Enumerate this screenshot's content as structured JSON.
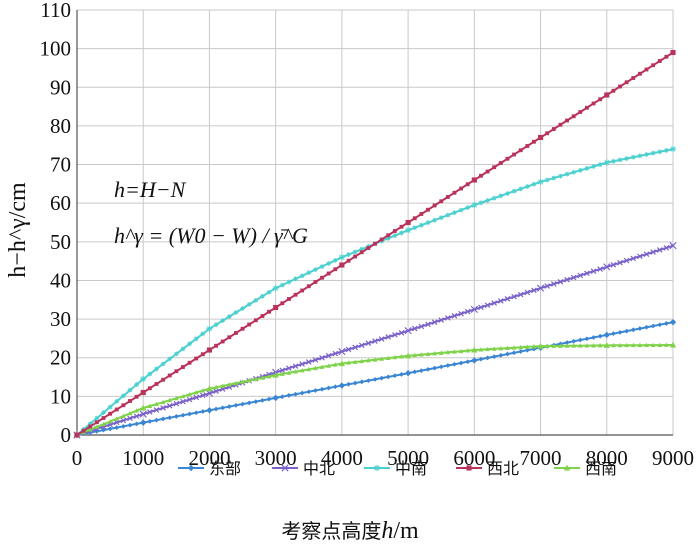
{
  "chart_data": {
    "type": "line",
    "xlabel": "考察点高度h/m",
    "xlabel_main": "考察点高度",
    "xlabel_var": "h",
    "xlabel_unit": "/m",
    "ylabel": "h−h^γ/cm",
    "xlim": [
      0,
      9000
    ],
    "ylim": [
      0,
      110
    ],
    "xticks": [
      0,
      1000,
      2000,
      3000,
      4000,
      5000,
      6000,
      7000,
      8000,
      9000
    ],
    "yticks": [
      0,
      10,
      20,
      30,
      40,
      50,
      60,
      70,
      80,
      90,
      100,
      110
    ],
    "grid": true,
    "legend_position": "bottom",
    "annotation": {
      "line1": "h=H−N",
      "line2": "h^γ = (W0 − W) / γ̄^G"
    },
    "series": [
      {
        "name": "东部",
        "color": "#3a86d4",
        "marker": "diamond",
        "x": [
          0,
          1000,
          2000,
          3000,
          4000,
          5000,
          6000,
          7000,
          8000,
          9000
        ],
        "values": [
          0,
          3.2,
          6.4,
          9.6,
          12.8,
          16.0,
          19.3,
          22.6,
          25.9,
          29.2
        ]
      },
      {
        "name": "中北",
        "color": "#7b62c9",
        "marker": "x",
        "x": [
          0,
          1000,
          2000,
          3000,
          4000,
          5000,
          6000,
          7000,
          8000,
          9000
        ],
        "values": [
          0,
          5.4,
          10.8,
          16.2,
          21.6,
          27.0,
          32.5,
          38.0,
          43.5,
          49.0
        ]
      },
      {
        "name": "中南",
        "color": "#4cd0cf",
        "marker": "star",
        "x": [
          0,
          1000,
          2000,
          3000,
          4000,
          5000,
          6000,
          7000,
          8000,
          9000
        ],
        "values": [
          0,
          14.5,
          27.5,
          38.0,
          46.0,
          53.0,
          59.5,
          65.5,
          70.5,
          74.0
        ]
      },
      {
        "name": "西北",
        "color": "#b8325a",
        "marker": "square",
        "x": [
          0,
          1000,
          2000,
          3000,
          4000,
          5000,
          6000,
          7000,
          8000,
          9000
        ],
        "values": [
          0,
          11.0,
          22.0,
          33.0,
          44.0,
          55.0,
          66.0,
          77.0,
          88.0,
          99.0
        ]
      },
      {
        "name": "西南",
        "color": "#7fd34a",
        "marker": "triangle",
        "x": [
          0,
          1000,
          2000,
          3000,
          4000,
          5000,
          6000,
          7000,
          8000,
          9000
        ],
        "values": [
          0,
          7.0,
          12.0,
          15.5,
          18.5,
          20.5,
          22.0,
          23.0,
          23.2,
          23.3
        ]
      }
    ]
  }
}
